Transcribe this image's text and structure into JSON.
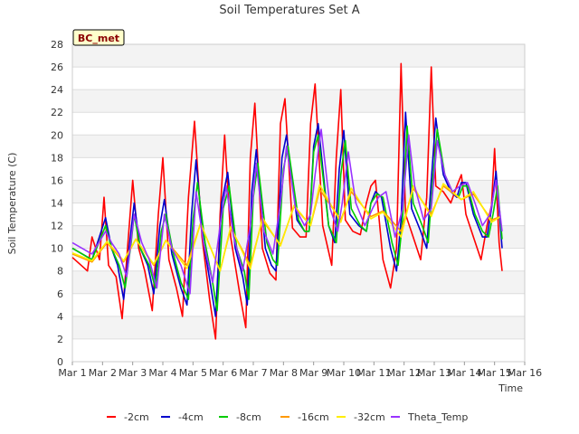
{
  "chart_data": {
    "type": "line",
    "title": "Soil Temperatures Set A",
    "xlabel": "Time",
    "ylabel": "Soil Temperature (C)",
    "ylim": [
      0,
      28
    ],
    "xlim": [
      1,
      16
    ],
    "yticks": [
      0,
      2,
      4,
      6,
      8,
      10,
      12,
      14,
      16,
      18,
      20,
      22,
      24,
      26,
      28
    ],
    "xticks": [
      {
        "v": 1,
        "label": "Mar 1"
      },
      {
        "v": 2,
        "label": "Mar 2"
      },
      {
        "v": 3,
        "label": "Mar 3"
      },
      {
        "v": 4,
        "label": "Mar 4"
      },
      {
        "v": 5,
        "label": "Mar 5"
      },
      {
        "v": 6,
        "label": "Mar 6"
      },
      {
        "v": 7,
        "label": "Mar 7"
      },
      {
        "v": 8,
        "label": "Mar 8"
      },
      {
        "v": 9,
        "label": "Mar 9"
      },
      {
        "v": 10,
        "label": "Mar 10"
      },
      {
        "v": 11,
        "label": "Mar 11"
      },
      {
        "v": 12,
        "label": "Mar 12"
      },
      {
        "v": 13,
        "label": "Mar 13"
      },
      {
        "v": 14,
        "label": "Mar 14"
      },
      {
        "v": 15,
        "label": "Mar 15"
      },
      {
        "v": 16,
        "label": "Mar 16"
      }
    ],
    "grid": true,
    "legend": "bottom",
    "badge": "BC_met",
    "x_note": "x values are day of March (e.g. 2.5 = Mar 2 12:00)",
    "series": [
      {
        "name": "-2cm",
        "color": "#ff0000",
        "x": [
          1.0,
          1.5,
          1.65,
          1.9,
          2.05,
          2.2,
          2.45,
          2.65,
          2.8,
          3.0,
          3.2,
          3.4,
          3.65,
          3.85,
          4.0,
          4.2,
          4.45,
          4.65,
          4.85,
          5.05,
          5.3,
          5.55,
          5.75,
          5.9,
          6.05,
          6.25,
          6.55,
          6.75,
          6.9,
          7.05,
          7.3,
          7.55,
          7.75,
          7.9,
          8.05,
          8.3,
          8.55,
          8.75,
          8.9,
          9.05,
          9.3,
          9.6,
          9.75,
          9.9,
          10.05,
          10.3,
          10.55,
          10.75,
          10.9,
          11.05,
          11.3,
          11.55,
          11.75,
          11.9,
          12.05,
          12.3,
          12.55,
          12.75,
          12.9,
          13.05,
          13.3,
          13.55,
          13.75,
          13.9,
          14.05,
          14.3,
          14.55,
          14.75,
          14.9,
          15.0,
          15.15,
          15.25
        ],
        "y": [
          9.2,
          8.0,
          11.0,
          9.0,
          14.5,
          8.5,
          7.5,
          3.8,
          9.0,
          16.0,
          10.0,
          8.0,
          4.5,
          13.0,
          18.0,
          9.0,
          6.5,
          4.0,
          14.5,
          21.2,
          11.0,
          5.5,
          2.0,
          13.0,
          20.0,
          11.0,
          6.0,
          3.0,
          18.0,
          22.8,
          10.0,
          7.8,
          7.2,
          21.0,
          23.2,
          11.8,
          11.0,
          11.0,
          21.0,
          24.5,
          12.0,
          8.5,
          18.0,
          24.0,
          12.5,
          11.5,
          11.2,
          14.0,
          15.5,
          16.0,
          9.0,
          6.5,
          10.0,
          26.3,
          13.0,
          11.0,
          9.0,
          14.5,
          26.0,
          15.5,
          15.0,
          14.0,
          15.5,
          16.5,
          13.0,
          11.0,
          9.0,
          12.0,
          13.8,
          18.8,
          10.5,
          8.0
        ]
      },
      {
        "name": "-4cm",
        "color": "#0000cc",
        "x": [
          1.0,
          1.65,
          2.1,
          2.3,
          2.5,
          2.7,
          2.9,
          3.05,
          3.25,
          3.5,
          3.7,
          3.9,
          4.05,
          4.3,
          4.6,
          4.8,
          4.95,
          5.1,
          5.35,
          5.6,
          5.75,
          5.95,
          6.15,
          6.4,
          6.65,
          6.8,
          6.95,
          7.1,
          7.4,
          7.6,
          7.75,
          7.95,
          8.1,
          8.45,
          8.7,
          8.85,
          9.0,
          9.15,
          9.5,
          9.7,
          9.85,
          10.0,
          10.2,
          10.5,
          10.75,
          10.9,
          11.05,
          11.25,
          11.55,
          11.75,
          11.9,
          12.05,
          12.25,
          12.55,
          12.75,
          12.9,
          13.05,
          13.3,
          13.55,
          13.75,
          13.9,
          14.05,
          14.3,
          14.6,
          14.75,
          14.9,
          15.05,
          15.25
        ],
        "y": [
          10.0,
          9.0,
          12.7,
          10.0,
          8.5,
          5.5,
          10.5,
          14.0,
          10.0,
          8.5,
          6.0,
          12.0,
          14.3,
          9.5,
          6.5,
          5.0,
          13.0,
          17.8,
          10.5,
          6.5,
          4.0,
          14.0,
          16.7,
          10.0,
          7.5,
          5.0,
          15.0,
          18.7,
          10.0,
          8.5,
          8.0,
          18.0,
          20.0,
          12.5,
          11.5,
          11.5,
          19.0,
          21.0,
          12.0,
          10.5,
          17.0,
          20.4,
          13.0,
          12.0,
          11.5,
          14.0,
          15.0,
          14.5,
          10.0,
          8.0,
          12.5,
          22.0,
          13.5,
          11.5,
          10.0,
          16.0,
          21.5,
          16.5,
          15.0,
          14.5,
          15.8,
          15.8,
          13.0,
          11.0,
          11.0,
          13.5,
          16.8,
          10.0
        ]
      },
      {
        "name": "-8cm",
        "color": "#00cc00",
        "x": [
          1.0,
          1.65,
          2.1,
          2.3,
          2.55,
          2.75,
          2.95,
          3.05,
          3.25,
          3.55,
          3.75,
          3.95,
          4.1,
          4.35,
          4.6,
          4.85,
          5.0,
          5.15,
          5.4,
          5.65,
          5.8,
          6.0,
          6.2,
          6.45,
          6.7,
          6.85,
          7.0,
          7.15,
          7.45,
          7.65,
          7.8,
          8.0,
          8.15,
          8.5,
          8.7,
          8.85,
          9.0,
          9.15,
          9.5,
          9.75,
          9.9,
          10.05,
          10.25,
          10.55,
          10.75,
          10.9,
          11.1,
          11.3,
          11.6,
          11.8,
          11.95,
          12.1,
          12.3,
          12.6,
          12.8,
          12.95,
          13.1,
          13.35,
          13.6,
          13.8,
          13.95,
          14.1,
          14.35,
          14.6,
          14.8,
          14.95,
          15.1,
          15.25
        ],
        "y": [
          10.0,
          9.0,
          12.0,
          10.0,
          8.5,
          6.5,
          10.5,
          13.0,
          10.0,
          8.5,
          6.5,
          11.5,
          13.0,
          9.5,
          7.0,
          5.5,
          12.5,
          15.8,
          10.5,
          7.0,
          4.5,
          13.5,
          15.5,
          10.0,
          8.0,
          5.5,
          14.5,
          17.5,
          10.5,
          9.0,
          8.5,
          17.0,
          19.0,
          12.5,
          11.5,
          11.5,
          18.5,
          20.0,
          12.0,
          10.5,
          16.5,
          19.5,
          13.5,
          12.0,
          11.5,
          14.0,
          14.8,
          14.5,
          10.5,
          8.5,
          12.5,
          20.8,
          14.0,
          12.0,
          10.5,
          16.0,
          20.5,
          16.5,
          15.0,
          14.5,
          15.5,
          15.5,
          13.0,
          11.5,
          11.0,
          13.0,
          15.5,
          10.8
        ]
      },
      {
        "name": "-16cm",
        "color": "#ff9900",
        "x": [
          1.0,
          1.65,
          2.15,
          2.7,
          3.1,
          3.7,
          4.1,
          4.8,
          5.25,
          5.9,
          6.25,
          6.9,
          7.3,
          7.9,
          8.35,
          8.9,
          9.2,
          9.9,
          10.25,
          10.9,
          11.3,
          11.9,
          12.3,
          12.9,
          13.3,
          13.9,
          14.3,
          14.9,
          15.2
        ],
        "y": [
          9.5,
          8.8,
          10.5,
          8.8,
          10.8,
          8.5,
          10.7,
          8.5,
          12.2,
          8.0,
          11.8,
          8.5,
          12.5,
          10.3,
          13.7,
          12.0,
          15.2,
          12.5,
          15.0,
          12.8,
          13.3,
          11.5,
          15.3,
          13.0,
          15.5,
          14.3,
          14.8,
          12.5,
          12.8
        ]
      },
      {
        "name": "-32cm",
        "color": "#ffee00",
        "x": [
          1.0,
          1.65,
          2.15,
          2.7,
          3.1,
          3.7,
          4.1,
          4.8,
          5.25,
          5.9,
          6.25,
          6.9,
          7.3,
          7.9,
          8.35,
          8.9,
          9.2,
          9.9,
          10.25,
          10.9,
          11.3,
          11.9,
          12.3,
          12.9,
          13.3,
          13.9,
          14.3,
          14.9,
          15.2
        ],
        "y": [
          9.6,
          8.9,
          10.6,
          8.9,
          10.8,
          8.6,
          10.7,
          8.2,
          12.2,
          8.0,
          11.9,
          8.2,
          12.7,
          10.2,
          13.8,
          12.0,
          15.6,
          12.3,
          15.3,
          12.6,
          13.2,
          11.0,
          15.5,
          12.8,
          15.7,
          14.3,
          15.0,
          12.3,
          12.8
        ]
      },
      {
        "name": "Theta_Temp",
        "color": "#9933ff",
        "x": [
          1.0,
          1.65,
          2.1,
          2.3,
          2.55,
          2.8,
          3.05,
          3.3,
          3.55,
          3.8,
          4.05,
          4.3,
          4.6,
          4.9,
          5.1,
          5.35,
          5.65,
          5.9,
          6.1,
          6.35,
          6.65,
          6.9,
          7.1,
          7.35,
          7.65,
          7.9,
          8.1,
          8.4,
          8.7,
          8.9,
          9.05,
          9.25,
          9.55,
          9.8,
          9.95,
          10.15,
          10.4,
          10.7,
          10.95,
          11.15,
          11.4,
          11.7,
          11.95,
          12.15,
          12.35,
          12.65,
          12.9,
          13.1,
          13.35,
          13.6,
          13.85,
          14.1,
          14.35,
          14.6,
          14.85,
          15.05,
          15.25
        ],
        "y": [
          10.5,
          9.5,
          11.5,
          10.5,
          9.5,
          7.5,
          13.0,
          10.5,
          9.0,
          6.5,
          13.0,
          10.0,
          8.5,
          6.0,
          15.0,
          10.5,
          7.0,
          12.0,
          15.5,
          11.0,
          8.0,
          12.0,
          17.5,
          11.5,
          9.5,
          14.0,
          19.0,
          13.5,
          12.0,
          13.0,
          16.5,
          20.5,
          13.5,
          11.5,
          14.0,
          18.5,
          14.0,
          12.0,
          13.5,
          14.5,
          15.0,
          11.0,
          13.5,
          20.0,
          15.5,
          12.5,
          13.5,
          19.5,
          16.5,
          15.0,
          15.5,
          15.8,
          14.0,
          12.0,
          13.0,
          16.0,
          11.5
        ]
      }
    ]
  }
}
